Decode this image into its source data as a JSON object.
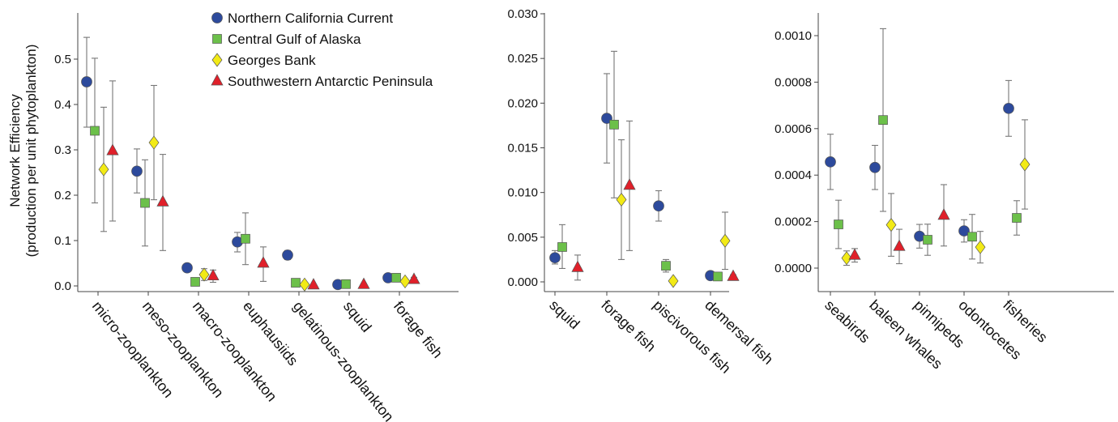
{
  "y_axis_label_lines": [
    "Network Efficiency",
    "(production per unit phytoplankton)"
  ],
  "legend": [
    {
      "name": "Northern California Current",
      "marker": "circle",
      "color": "#2d4a9c"
    },
    {
      "name": "Central Gulf of Alaska",
      "marker": "square",
      "color": "#6cc04a"
    },
    {
      "name": "Georges Bank",
      "marker": "diamond",
      "color": "#f2ea16"
    },
    {
      "name": "Southwestern Antarctic Peninsula",
      "marker": "triangle",
      "color": "#e0202a"
    }
  ],
  "chart_data": [
    {
      "type": "scatter",
      "error_bars": true,
      "ylim": [
        0,
        0.6
      ],
      "yticks": [
        "0.0",
        "0.1",
        "0.2",
        "0.3",
        "0.4",
        "0.5"
      ],
      "ylabel": "Network Efficiency (production per unit phytoplankton)",
      "legend_position": "top-right",
      "categories": [
        "micro-zooplankton",
        "meso-zooplankton",
        "macro-zooplankton",
        "euphausiids",
        "gelatinous-zooplankton",
        "squid",
        "forage fish"
      ],
      "series": [
        {
          "name": "Northern California Current",
          "values": [
            0.45,
            0.253,
            0.04,
            0.097,
            0.068,
            0.003,
            0.018
          ],
          "lower": [
            0.35,
            0.205,
            0.033,
            0.075,
            0.058,
            0.0,
            0.012
          ],
          "upper": [
            0.548,
            0.302,
            0.047,
            0.118,
            0.078,
            0.006,
            0.024
          ]
        },
        {
          "name": "Central Gulf of Alaska",
          "values": [
            0.342,
            0.183,
            0.009,
            0.104,
            0.007,
            0.004,
            0.018
          ],
          "lower": [
            0.183,
            0.088,
            0.006,
            0.047,
            0.004,
            0.002,
            0.013
          ],
          "upper": [
            0.502,
            0.278,
            0.012,
            0.161,
            0.01,
            0.006,
            0.023
          ]
        },
        {
          "name": "Georges Bank",
          "values": [
            0.257,
            0.316,
            0.025,
            null,
            0.003,
            null,
            0.01
          ],
          "lower": [
            0.12,
            0.19,
            0.012,
            null,
            0.001,
            null,
            0.005
          ],
          "upper": [
            0.394,
            0.442,
            0.038,
            null,
            0.005,
            null,
            0.015
          ]
        },
        {
          "name": "Southwestern Antarctic Peninsula",
          "values": [
            0.298,
            0.185,
            0.022,
            0.05,
            0.002,
            0.003,
            0.014
          ],
          "lower": [
            0.143,
            0.078,
            0.008,
            0.01,
            0.001,
            0.001,
            0.009
          ],
          "upper": [
            0.452,
            0.29,
            0.035,
            0.086,
            0.003,
            0.005,
            0.019
          ]
        }
      ]
    },
    {
      "type": "scatter",
      "error_bars": true,
      "ylim": [
        0,
        0.03
      ],
      "yticks": [
        "0.000",
        "0.005",
        "0.010",
        "0.015",
        "0.020",
        "0.025",
        "0.030"
      ],
      "categories": [
        "squid",
        "forage fish",
        "piscivorous fish",
        "demersal fish"
      ],
      "series": [
        {
          "name": "Northern California Current",
          "values": [
            0.0027,
            0.0183,
            0.0085,
            0.0007
          ],
          "lower": [
            0.002,
            0.0133,
            0.0068,
            0.0005
          ],
          "upper": [
            0.0035,
            0.0233,
            0.0102,
            0.0009
          ]
        },
        {
          "name": "Central Gulf of Alaska",
          "values": [
            0.0039,
            0.0176,
            0.0018,
            0.0006
          ],
          "lower": [
            0.0015,
            0.0094,
            0.0011,
            0.0004
          ],
          "upper": [
            0.0064,
            0.0258,
            0.0025,
            0.0008
          ]
        },
        {
          "name": "Georges Bank",
          "values": [
            null,
            0.0092,
            0.0001,
            0.0046
          ],
          "lower": [
            null,
            0.0025,
            0.0,
            0.0014
          ],
          "upper": [
            null,
            0.0159,
            0.0002,
            0.0078
          ]
        },
        {
          "name": "Southwestern Antarctic Peninsula",
          "values": [
            0.0016,
            0.0108,
            null,
            0.0006
          ],
          "lower": [
            0.0002,
            0.0035,
            null,
            0.0004
          ],
          "upper": [
            0.003,
            0.018,
            null,
            0.0008
          ]
        }
      ]
    },
    {
      "type": "scatter",
      "error_bars": true,
      "ylim": [
        0,
        0.0011
      ],
      "yticks": [
        "0.0000",
        "0.0002",
        "0.0004",
        "0.0006",
        "0.0008",
        "0.0010"
      ],
      "categories": [
        "seabirds",
        "baleen whales",
        "pinnipeds",
        "odontocetes",
        "fisheries"
      ],
      "series": [
        {
          "name": "Northern California Current",
          "values": [
            0.000457,
            0.000433,
            0.000137,
            0.00016,
            0.000687
          ],
          "lower": [
            0.000338,
            0.000338,
            8.6e-05,
            0.000112,
            0.000567
          ],
          "upper": [
            0.000576,
            0.000528,
            0.000188,
            0.000208,
            0.000807
          ]
        },
        {
          "name": "Central Gulf of Alaska",
          "values": [
            0.000188,
            0.000637,
            0.000122,
            0.000135,
            0.000216
          ],
          "lower": [
            8.4e-05,
            0.000244,
            5.5e-05,
            3.9e-05,
            0.000142
          ],
          "upper": [
            0.000292,
            0.00103,
            0.000189,
            0.000231,
            0.00029
          ]
        },
        {
          "name": "Georges Bank",
          "values": [
            4.3e-05,
            0.000186,
            null,
            9e-05,
            0.000446
          ],
          "lower": [
            1.2e-05,
            5.1e-05,
            null,
            2.2e-05,
            0.000254
          ],
          "upper": [
            7.4e-05,
            0.000321,
            null,
            0.000158,
            0.000638
          ]
        },
        {
          "name": "Southwestern Antarctic Peninsula",
          "values": [
            5.5e-05,
            9.3e-05,
            0.000227,
            null,
            null
          ],
          "lower": [
            2.6e-05,
            1.9e-05,
            9.5e-05,
            null,
            null
          ],
          "upper": [
            8.4e-05,
            0.000167,
            0.000359,
            null,
            null
          ]
        }
      ]
    }
  ]
}
